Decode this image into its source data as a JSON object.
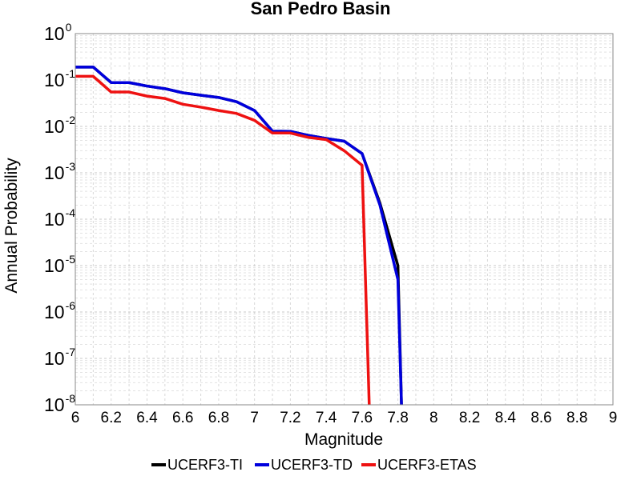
{
  "chart_data": {
    "type": "line",
    "title": "San Pedro Basin",
    "xlabel": "Magnitude",
    "ylabel": "Annual Probability",
    "xlim": [
      6,
      9
    ],
    "ylim": [
      1e-08,
      1
    ],
    "yscale": "log",
    "grid": true,
    "legend_position": "bottom",
    "x_ticks": [
      "6",
      "6.2",
      "6.4",
      "6.6",
      "6.8",
      "7",
      "7.2",
      "7.4",
      "7.6",
      "7.8",
      "8",
      "8.2",
      "8.4",
      "8.6",
      "8.8",
      "9"
    ],
    "y_ticks": [
      {
        "base": "10",
        "exp": "0"
      },
      {
        "base": "10",
        "exp": "-1"
      },
      {
        "base": "10",
        "exp": "-2"
      },
      {
        "base": "10",
        "exp": "-3"
      },
      {
        "base": "10",
        "exp": "-4"
      },
      {
        "base": "10",
        "exp": "-5"
      },
      {
        "base": "10",
        "exp": "-6"
      },
      {
        "base": "10",
        "exp": "-7"
      },
      {
        "base": "10",
        "exp": "-8"
      }
    ],
    "series": [
      {
        "name": "UCERF3-TI",
        "color": "#000000",
        "points": [
          [
            6.0,
            0.19
          ],
          [
            6.1,
            0.19
          ],
          [
            6.2,
            0.088
          ],
          [
            6.3,
            0.088
          ],
          [
            6.4,
            0.074
          ],
          [
            6.5,
            0.065
          ],
          [
            6.6,
            0.053
          ],
          [
            6.7,
            0.047
          ],
          [
            6.8,
            0.042
          ],
          [
            6.9,
            0.034
          ],
          [
            7.0,
            0.022
          ],
          [
            7.1,
            0.0079
          ],
          [
            7.2,
            0.0078
          ],
          [
            7.3,
            0.0064
          ],
          [
            7.4,
            0.0055
          ],
          [
            7.5,
            0.0048
          ],
          [
            7.6,
            0.0026
          ],
          [
            7.7,
            0.00022
          ],
          [
            7.8,
            1e-05
          ],
          [
            7.82,
            1e-08
          ]
        ]
      },
      {
        "name": "UCERF3-TD",
        "color": "#0000dd",
        "points": [
          [
            6.0,
            0.19
          ],
          [
            6.1,
            0.19
          ],
          [
            6.2,
            0.088
          ],
          [
            6.3,
            0.088
          ],
          [
            6.4,
            0.074
          ],
          [
            6.5,
            0.065
          ],
          [
            6.6,
            0.053
          ],
          [
            6.7,
            0.047
          ],
          [
            6.8,
            0.042
          ],
          [
            6.9,
            0.034
          ],
          [
            7.0,
            0.022
          ],
          [
            7.1,
            0.0079
          ],
          [
            7.2,
            0.0078
          ],
          [
            7.3,
            0.0064
          ],
          [
            7.4,
            0.0055
          ],
          [
            7.5,
            0.0048
          ],
          [
            7.6,
            0.0026
          ],
          [
            7.7,
            0.0002
          ],
          [
            7.8,
            5e-06
          ],
          [
            7.82,
            1e-08
          ]
        ]
      },
      {
        "name": "UCERF3-ETAS",
        "color": "#ee1111",
        "points": [
          [
            6.0,
            0.12
          ],
          [
            6.1,
            0.12
          ],
          [
            6.2,
            0.055
          ],
          [
            6.3,
            0.055
          ],
          [
            6.4,
            0.045
          ],
          [
            6.5,
            0.04
          ],
          [
            6.6,
            0.03
          ],
          [
            6.7,
            0.026
          ],
          [
            6.8,
            0.022
          ],
          [
            6.9,
            0.019
          ],
          [
            7.0,
            0.0135
          ],
          [
            7.1,
            0.0072
          ],
          [
            7.2,
            0.0072
          ],
          [
            7.3,
            0.0058
          ],
          [
            7.4,
            0.0052
          ],
          [
            7.5,
            0.003
          ],
          [
            7.6,
            0.00145
          ],
          [
            7.64,
            1e-08
          ]
        ]
      }
    ]
  }
}
